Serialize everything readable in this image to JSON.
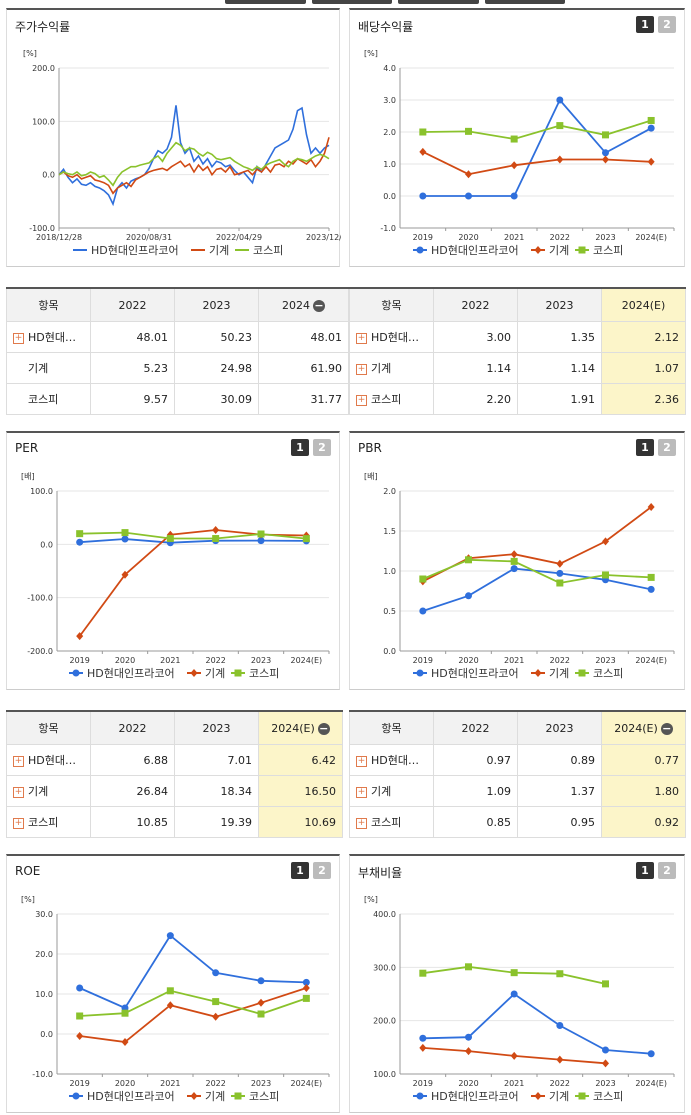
{
  "colors": {
    "hd": "#2f6fdc",
    "machine": "#d14a14",
    "kospi": "#8ac22c"
  },
  "legend": [
    "HD현대인프라코어",
    "기계",
    "코스피"
  ],
  "panels": {
    "stock": {
      "title": "주가수익률",
      "unit": "[%]"
    },
    "div": {
      "title": "배당수익률",
      "unit": "[%]"
    },
    "per": {
      "title": "PER",
      "unit": "[배]"
    },
    "pbr": {
      "title": "PBR",
      "unit": "[배]"
    },
    "roe": {
      "title": "ROE",
      "unit": "[%]"
    },
    "debt": {
      "title": "부채비율",
      "unit": "[%]"
    }
  },
  "pager": [
    "1",
    "2"
  ],
  "tables": {
    "stock": {
      "headers": [
        "항목",
        "2022",
        "2023",
        "2024"
      ],
      "rows": [
        {
          "name": "HD현대인프라코어",
          "values": [
            "48.01",
            "50.23",
            "48.01"
          ]
        },
        {
          "name": "기계",
          "values": [
            "5.23",
            "24.98",
            "61.90"
          ]
        },
        {
          "name": "코스피",
          "values": [
            "9.57",
            "30.09",
            "31.77"
          ]
        }
      ]
    },
    "div": {
      "headers": [
        "항목",
        "2022",
        "2023",
        "2024(E)"
      ],
      "rows": [
        {
          "name": "HD현대인프라코어",
          "values": [
            "3.00",
            "1.35",
            "2.12"
          ]
        },
        {
          "name": "기계",
          "values": [
            "1.14",
            "1.14",
            "1.07"
          ]
        },
        {
          "name": "코스피",
          "values": [
            "2.20",
            "1.91",
            "2.36"
          ]
        }
      ]
    },
    "per": {
      "headers": [
        "항목",
        "2022",
        "2023",
        "2024(E)"
      ],
      "rows": [
        {
          "name": "HD현대인프라코어",
          "values": [
            "6.88",
            "7.01",
            "6.42"
          ]
        },
        {
          "name": "기계",
          "values": [
            "26.84",
            "18.34",
            "16.50"
          ]
        },
        {
          "name": "코스피",
          "values": [
            "10.85",
            "19.39",
            "10.69"
          ]
        }
      ]
    },
    "pbr": {
      "headers": [
        "항목",
        "2022",
        "2023",
        "2024(E)"
      ],
      "rows": [
        {
          "name": "HD현대인프라코어",
          "values": [
            "0.97",
            "0.89",
            "0.77"
          ]
        },
        {
          "name": "기계",
          "values": [
            "1.09",
            "1.37",
            "1.80"
          ]
        },
        {
          "name": "코스피",
          "values": [
            "0.85",
            "0.95",
            "0.92"
          ]
        }
      ]
    }
  },
  "chart_data": [
    {
      "id": "stock",
      "type": "line",
      "title": "주가수익률",
      "ylabel": "[%]",
      "ylim": [
        -100,
        200
      ],
      "yticks": [
        "200.0",
        "100.0",
        "0.0",
        "-100.0"
      ],
      "xticks": [
        "2018/12/28",
        "2020/08/31",
        "2022/04/29",
        "2023/12/28"
      ],
      "x_range": [
        0,
        60
      ],
      "x": [
        0,
        1,
        2,
        3,
        4,
        5,
        6,
        7,
        8,
        9,
        10,
        11,
        12,
        13,
        14,
        15,
        16,
        17,
        18,
        19,
        20,
        21,
        22,
        23,
        24,
        25,
        26,
        27,
        28,
        29,
        30,
        31,
        32,
        33,
        34,
        35,
        36,
        37,
        38,
        39,
        40,
        41,
        42,
        43,
        44,
        45,
        46,
        47,
        48,
        49,
        50,
        51,
        52,
        53,
        54,
        55,
        56,
        57,
        58,
        59,
        60
      ],
      "series": [
        {
          "name": "HD현대인프라코어",
          "values": [
            0,
            10,
            -5,
            -15,
            -8,
            -18,
            -20,
            -15,
            -22,
            -25,
            -30,
            -38,
            -55,
            -25,
            -15,
            -25,
            -12,
            -8,
            -5,
            0,
            12,
            30,
            45,
            40,
            48,
            70,
            130,
            60,
            40,
            50,
            25,
            35,
            20,
            30,
            15,
            25,
            22,
            15,
            18,
            8,
            0,
            5,
            -5,
            -15,
            15,
            5,
            20,
            35,
            50,
            55,
            60,
            65,
            85,
            120,
            125,
            75,
            40,
            50,
            40,
            50,
            55
          ]
        },
        {
          "name": "기계",
          "values": [
            0,
            5,
            -2,
            -5,
            0,
            -8,
            -5,
            -2,
            -10,
            -12,
            -15,
            -20,
            -35,
            -25,
            -20,
            -15,
            -22,
            -10,
            -5,
            0,
            5,
            8,
            10,
            12,
            8,
            15,
            20,
            25,
            15,
            20,
            5,
            18,
            8,
            15,
            0,
            10,
            12,
            5,
            15,
            0,
            2,
            5,
            8,
            0,
            10,
            5,
            15,
            5,
            18,
            20,
            15,
            25,
            20,
            30,
            25,
            20,
            28,
            15,
            25,
            40,
            70
          ]
        },
        {
          "name": "코스피",
          "values": [
            0,
            5,
            2,
            0,
            5,
            -2,
            0,
            5,
            2,
            -5,
            -2,
            -10,
            -20,
            -5,
            5,
            10,
            15,
            15,
            18,
            20,
            22,
            30,
            35,
            25,
            40,
            50,
            60,
            55,
            45,
            50,
            48,
            40,
            35,
            42,
            38,
            30,
            28,
            30,
            32,
            25,
            20,
            15,
            12,
            8,
            15,
            10,
            18,
            22,
            25,
            28,
            20,
            15,
            25,
            30,
            28,
            25,
            30,
            35,
            38,
            35,
            30
          ]
        }
      ]
    },
    {
      "id": "div",
      "type": "line",
      "title": "배당수익률",
      "ylabel": "[%]",
      "ylim": [
        -1,
        4
      ],
      "yticks": [
        "4.0",
        "3.0",
        "2.0",
        "1.0",
        "0.0",
        "-1.0"
      ],
      "categories": [
        "2019",
        "2020",
        "2021",
        "2022",
        "2023",
        "2024(E)"
      ],
      "series": [
        {
          "name": "HD현대인프라코어",
          "values": [
            0.0,
            0.0,
            0.0,
            3.0,
            1.35,
            2.12
          ]
        },
        {
          "name": "기계",
          "values": [
            1.38,
            0.68,
            0.96,
            1.14,
            1.14,
            1.07
          ]
        },
        {
          "name": "코스피",
          "values": [
            2.0,
            2.02,
            1.78,
            2.2,
            1.91,
            2.36
          ]
        }
      ]
    },
    {
      "id": "per",
      "type": "line",
      "title": "PER",
      "ylabel": "[배]",
      "ylim": [
        -200,
        100
      ],
      "yticks": [
        "100.0",
        "0.0",
        "-100.0",
        "-200.0"
      ],
      "categories": [
        "2019",
        "2020",
        "2021",
        "2022",
        "2023",
        "2024(E)"
      ],
      "series": [
        {
          "name": "HD현대인프라코어",
          "values": [
            4.0,
            10.0,
            3.0,
            6.88,
            7.01,
            6.42
          ]
        },
        {
          "name": "기계",
          "values": [
            -172.0,
            -57.0,
            18.0,
            26.84,
            18.34,
            16.5
          ]
        },
        {
          "name": "코스피",
          "values": [
            20.0,
            22.0,
            11.0,
            10.85,
            19.39,
            10.69
          ]
        }
      ]
    },
    {
      "id": "pbr",
      "type": "line",
      "title": "PBR",
      "ylabel": "[배]",
      "ylim": [
        0,
        2
      ],
      "yticks": [
        "2.0",
        "1.5",
        "1.0",
        "0.5",
        "0.0"
      ],
      "categories": [
        "2019",
        "2020",
        "2021",
        "2022",
        "2023",
        "2024(E)"
      ],
      "series": [
        {
          "name": "HD현대인프라코어",
          "values": [
            0.5,
            0.69,
            1.03,
            0.97,
            0.89,
            0.77
          ]
        },
        {
          "name": "기계",
          "values": [
            0.87,
            1.16,
            1.21,
            1.09,
            1.37,
            1.8
          ]
        },
        {
          "name": "코스피",
          "values": [
            0.9,
            1.14,
            1.12,
            0.85,
            0.95,
            0.92
          ]
        }
      ]
    },
    {
      "id": "roe",
      "type": "line",
      "title": "ROE",
      "ylabel": "[%]",
      "ylim": [
        -10,
        30
      ],
      "yticks": [
        "30.0",
        "20.0",
        "10.0",
        "0.0",
        "-10.0"
      ],
      "categories": [
        "2019",
        "2020",
        "2021",
        "2022",
        "2023",
        "2024(E)"
      ],
      "series": [
        {
          "name": "HD현대인프라코어",
          "values": [
            11.5,
            6.5,
            24.6,
            15.3,
            13.3,
            12.9
          ]
        },
        {
          "name": "기계",
          "values": [
            -0.5,
            -2.0,
            7.2,
            4.3,
            7.8,
            11.5
          ]
        },
        {
          "name": "코스피",
          "values": [
            4.5,
            5.2,
            10.8,
            8.1,
            5.0,
            8.9
          ]
        }
      ]
    },
    {
      "id": "debt",
      "type": "line",
      "title": "부채비율",
      "ylabel": "[%]",
      "ylim": [
        100,
        400
      ],
      "yticks": [
        "400.0",
        "300.0",
        "200.0",
        "100.0"
      ],
      "categories": [
        "2019",
        "2020",
        "2021",
        "2022",
        "2023",
        "2024(E)"
      ],
      "series": [
        {
          "name": "HD현대인프라코어",
          "values": [
            167,
            169,
            250,
            191,
            145,
            138
          ]
        },
        {
          "name": "기계",
          "values": [
            149,
            143,
            134,
            127,
            120,
            null
          ]
        },
        {
          "name": "코스피",
          "values": [
            289,
            301,
            290,
            288,
            269,
            null
          ]
        }
      ]
    }
  ]
}
